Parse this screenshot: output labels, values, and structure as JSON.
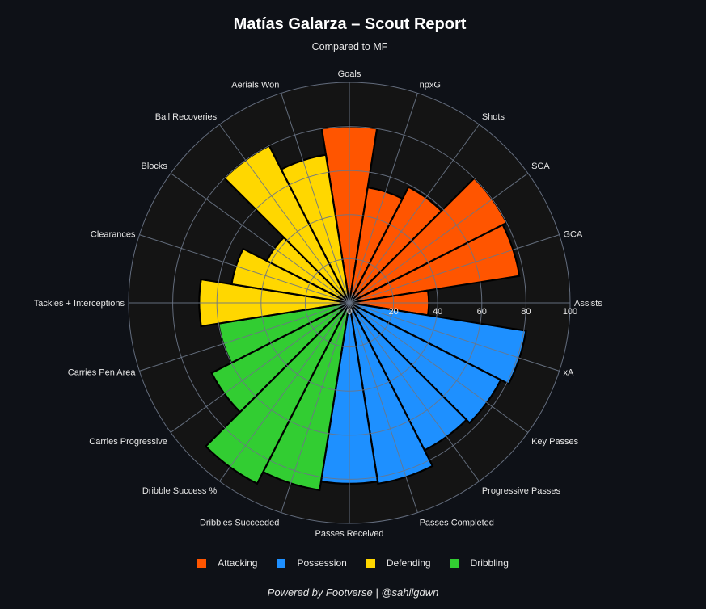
{
  "title": "Matías Galarza – Scout Report",
  "subtitle": "Compared to MF",
  "footer": "Powered by Footverse | @sahilgdwn",
  "colors": {
    "background": "#0e1117",
    "polar_bg": "#141414",
    "grid": "#6b7687",
    "Attacking": "#ff5500",
    "Possession": "#1e90ff",
    "Defending": "#ffd700",
    "Dribbling": "#32cd32"
  },
  "legend": [
    {
      "label": "Attacking",
      "color": "#ff5500"
    },
    {
      "label": "Possession",
      "color": "#1e90ff"
    },
    {
      "label": "Defending",
      "color": "#ffd700"
    },
    {
      "label": "Dribbling",
      "color": "#32cd32"
    }
  ],
  "chart_data": {
    "type": "bar",
    "subtype": "polar",
    "title": "Matías Galarza – Scout Report",
    "subtitle": "Compared to MF",
    "radial_range": [
      0,
      100
    ],
    "radial_ticks": [
      0,
      20,
      40,
      60,
      80,
      100
    ],
    "grid": true,
    "legend_position": "bottom",
    "direction": "clockwise",
    "start_angle_deg": 90,
    "categories": [
      "Goals",
      "npxG",
      "Shots",
      "SCA",
      "GCA",
      "Assists",
      "xA",
      "Key Passes",
      "Progressive Passes",
      "Passes Completed",
      "Passes Received",
      "Dribbles Succeeded",
      "Dribble Success %",
      "Carries Progressive",
      "Carries Pen Area",
      "Tackles + Interceptions",
      "Clearances",
      "Blocks",
      "Ball Recoveries",
      "Aerials Won"
    ],
    "values": [
      80,
      53,
      59,
      80,
      78,
      36,
      81,
      77,
      75,
      83,
      82,
      86,
      92,
      70,
      60,
      68,
      54,
      42,
      80,
      68
    ],
    "groups": [
      "Attacking",
      "Attacking",
      "Attacking",
      "Attacking",
      "Attacking",
      "Attacking",
      "Possession",
      "Possession",
      "Possession",
      "Possession",
      "Possession",
      "Dribbling",
      "Dribbling",
      "Dribbling",
      "Dribbling",
      "Defending",
      "Defending",
      "Defending",
      "Defending",
      "Defending"
    ],
    "series": [
      {
        "name": "Attacking",
        "categories": [
          "Goals",
          "npxG",
          "Shots",
          "SCA",
          "GCA",
          "Assists"
        ],
        "values": [
          80,
          53,
          59,
          80,
          78,
          36
        ]
      },
      {
        "name": "Possession",
        "categories": [
          "xA",
          "Key Passes",
          "Progressive Passes",
          "Passes Completed",
          "Passes Received"
        ],
        "values": [
          81,
          77,
          75,
          83,
          82
        ]
      },
      {
        "name": "Defending",
        "categories": [
          "Tackles + Interceptions",
          "Clearances",
          "Blocks",
          "Ball Recoveries",
          "Aerials Won"
        ],
        "values": [
          68,
          54,
          42,
          80,
          68
        ]
      },
      {
        "name": "Dribbling",
        "categories": [
          "Dribbles Succeeded",
          "Dribble Success %",
          "Carries Progressive",
          "Carries Pen Area"
        ],
        "values": [
          86,
          92,
          70,
          60
        ]
      }
    ]
  }
}
